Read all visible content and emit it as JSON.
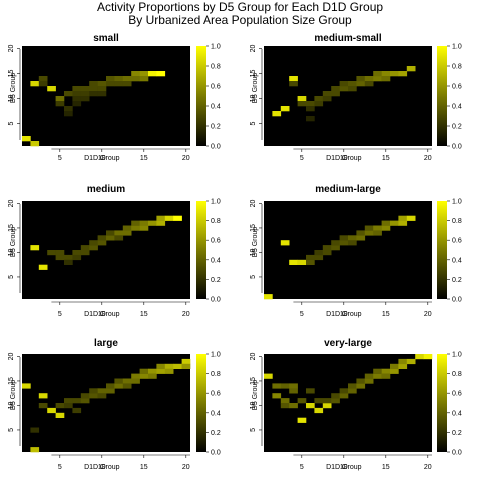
{
  "figure": {
    "title_line1": "Activity Proportions by D5 Group for Each D1D Group",
    "title_line2": "By Urbanized Area Population Size Group"
  },
  "colors": {
    "low": "#000000",
    "mid": "#7a7a00",
    "high": "#ffff00",
    "grid_bg": "#000000"
  },
  "chart_data": [
    {
      "type": "heatmap",
      "title": "small",
      "xlabel": "D1D Group",
      "ylabel": "D5 Group",
      "xlim": [
        1,
        20
      ],
      "ylim": [
        1,
        20
      ],
      "x_ticks": [
        5,
        10,
        15,
        20
      ],
      "y_ticks": [
        5,
        10,
        15,
        20
      ],
      "colorbar": {
        "range": [
          0,
          1
        ],
        "ticks": [
          "0.0",
          "0.2",
          "0.4",
          "0.6",
          "0.8",
          "1.0"
        ]
      },
      "cells": [
        [
          1,
          2,
          0.9
        ],
        [
          2,
          1,
          0.8
        ],
        [
          2,
          13,
          0.85
        ],
        [
          3,
          14,
          0.3
        ],
        [
          3,
          13,
          0.25
        ],
        [
          4,
          12,
          0.85
        ],
        [
          5,
          10,
          0.45
        ],
        [
          5,
          9,
          0.25
        ],
        [
          6,
          11,
          0.3
        ],
        [
          6,
          8,
          0.2
        ],
        [
          6,
          7,
          0.15
        ],
        [
          7,
          12,
          0.3
        ],
        [
          7,
          11,
          0.25
        ],
        [
          7,
          10,
          0.2
        ],
        [
          7,
          9,
          0.15
        ],
        [
          8,
          12,
          0.3
        ],
        [
          8,
          11,
          0.25
        ],
        [
          8,
          10,
          0.2
        ],
        [
          9,
          13,
          0.3
        ],
        [
          9,
          12,
          0.3
        ],
        [
          9,
          11,
          0.2
        ],
        [
          10,
          13,
          0.35
        ],
        [
          10,
          12,
          0.3
        ],
        [
          10,
          11,
          0.2
        ],
        [
          11,
          14,
          0.35
        ],
        [
          11,
          13,
          0.3
        ],
        [
          12,
          14,
          0.4
        ],
        [
          12,
          13,
          0.3
        ],
        [
          13,
          14,
          0.45
        ],
        [
          13,
          13,
          0.3
        ],
        [
          14,
          15,
          0.55
        ],
        [
          14,
          14,
          0.45
        ],
        [
          15,
          15,
          0.6
        ],
        [
          15,
          14,
          0.5
        ],
        [
          16,
          15,
          0.95
        ],
        [
          17,
          15,
          1.0
        ]
      ]
    },
    {
      "type": "heatmap",
      "title": "medium-small",
      "xlabel": "D1D Group",
      "ylabel": "D5 Group",
      "xlim": [
        1,
        20
      ],
      "ylim": [
        1,
        20
      ],
      "x_ticks": [
        5,
        10,
        15,
        20
      ],
      "y_ticks": [
        5,
        10,
        15,
        20
      ],
      "colorbar": {
        "range": [
          0,
          1
        ],
        "ticks": [
          "0.0",
          "0.2",
          "0.4",
          "0.6",
          "0.8",
          "1.0"
        ]
      },
      "cells": [
        [
          2,
          7,
          0.9
        ],
        [
          3,
          8,
          0.9
        ],
        [
          4,
          14,
          0.9
        ],
        [
          4,
          13,
          0.3
        ],
        [
          5,
          10,
          0.85
        ],
        [
          5,
          9,
          0.3
        ],
        [
          6,
          9,
          0.3
        ],
        [
          6,
          8,
          0.2
        ],
        [
          6,
          6,
          0.15
        ],
        [
          7,
          10,
          0.3
        ],
        [
          7,
          9,
          0.25
        ],
        [
          8,
          11,
          0.3
        ],
        [
          8,
          10,
          0.25
        ],
        [
          9,
          11,
          0.3
        ],
        [
          9,
          12,
          0.3
        ],
        [
          10,
          12,
          0.35
        ],
        [
          10,
          13,
          0.3
        ],
        [
          11,
          13,
          0.35
        ],
        [
          11,
          12,
          0.3
        ],
        [
          12,
          13,
          0.4
        ],
        [
          12,
          14,
          0.35
        ],
        [
          13,
          14,
          0.45
        ],
        [
          13,
          13,
          0.3
        ],
        [
          14,
          14,
          0.5
        ],
        [
          14,
          15,
          0.45
        ],
        [
          15,
          15,
          0.55
        ],
        [
          15,
          14,
          0.45
        ],
        [
          16,
          15,
          0.6
        ],
        [
          17,
          15,
          0.65
        ],
        [
          18,
          16,
          0.7
        ]
      ]
    },
    {
      "type": "heatmap",
      "title": "medium",
      "xlabel": "D1D Group",
      "ylabel": "D5 Group",
      "xlim": [
        1,
        20
      ],
      "ylim": [
        1,
        20
      ],
      "x_ticks": [
        5,
        10,
        15,
        20
      ],
      "y_ticks": [
        5,
        10,
        15,
        20
      ],
      "colorbar": {
        "range": [
          0,
          1
        ],
        "ticks": [
          "0.0",
          "0.2",
          "0.4",
          "0.6",
          "0.8",
          "1.0"
        ]
      },
      "cells": [
        [
          2,
          11,
          0.9
        ],
        [
          3,
          7,
          0.9
        ],
        [
          4,
          10,
          0.3
        ],
        [
          5,
          9,
          0.3
        ],
        [
          5,
          10,
          0.3
        ],
        [
          6,
          9,
          0.3
        ],
        [
          6,
          8,
          0.2
        ],
        [
          7,
          10,
          0.3
        ],
        [
          7,
          9,
          0.25
        ],
        [
          8,
          10,
          0.3
        ],
        [
          8,
          11,
          0.3
        ],
        [
          9,
          11,
          0.35
        ],
        [
          9,
          12,
          0.3
        ],
        [
          10,
          12,
          0.35
        ],
        [
          10,
          13,
          0.3
        ],
        [
          11,
          13,
          0.4
        ],
        [
          11,
          14,
          0.3
        ],
        [
          12,
          14,
          0.45
        ],
        [
          12,
          13,
          0.3
        ],
        [
          13,
          14,
          0.45
        ],
        [
          13,
          15,
          0.4
        ],
        [
          14,
          15,
          0.5
        ],
        [
          14,
          16,
          0.4
        ],
        [
          15,
          15,
          0.55
        ],
        [
          15,
          16,
          0.5
        ],
        [
          16,
          16,
          0.6
        ],
        [
          17,
          16,
          0.7
        ],
        [
          17,
          17,
          0.65
        ],
        [
          18,
          17,
          0.85
        ],
        [
          19,
          17,
          1.0
        ]
      ]
    },
    {
      "type": "heatmap",
      "title": "medium-large",
      "xlabel": "D1D Group",
      "ylabel": "D5 Group",
      "xlim": [
        1,
        20
      ],
      "ylim": [
        1,
        20
      ],
      "x_ticks": [
        5,
        10,
        15,
        20
      ],
      "y_ticks": [
        5,
        10,
        15,
        20
      ],
      "colorbar": {
        "range": [
          0,
          1
        ],
        "ticks": [
          "0.0",
          "0.2",
          "0.4",
          "0.6",
          "0.8",
          "1.0"
        ]
      },
      "cells": [
        [
          1,
          1,
          0.9
        ],
        [
          3,
          12,
          0.9
        ],
        [
          4,
          8,
          0.9
        ],
        [
          5,
          8,
          0.85
        ],
        [
          6,
          8,
          0.35
        ],
        [
          6,
          9,
          0.3
        ],
        [
          7,
          9,
          0.3
        ],
        [
          7,
          10,
          0.25
        ],
        [
          8,
          10,
          0.3
        ],
        [
          8,
          11,
          0.3
        ],
        [
          9,
          11,
          0.35
        ],
        [
          9,
          12,
          0.3
        ],
        [
          10,
          12,
          0.35
        ],
        [
          10,
          13,
          0.3
        ],
        [
          11,
          13,
          0.4
        ],
        [
          11,
          12,
          0.3
        ],
        [
          12,
          13,
          0.45
        ],
        [
          12,
          14,
          0.35
        ],
        [
          13,
          14,
          0.45
        ],
        [
          13,
          15,
          0.35
        ],
        [
          14,
          15,
          0.5
        ],
        [
          14,
          14,
          0.4
        ],
        [
          15,
          15,
          0.55
        ],
        [
          15,
          16,
          0.45
        ],
        [
          16,
          16,
          0.6
        ],
        [
          17,
          16,
          0.7
        ],
        [
          17,
          17,
          0.65
        ],
        [
          18,
          17,
          0.85
        ]
      ]
    },
    {
      "type": "heatmap",
      "title": "large",
      "xlabel": "D1D Group",
      "ylabel": "D5 Group",
      "xlim": [
        1,
        20
      ],
      "ylim": [
        1,
        20
      ],
      "x_ticks": [
        5,
        10,
        15,
        20
      ],
      "y_ticks": [
        5,
        10,
        15,
        20
      ],
      "colorbar": {
        "range": [
          0,
          1
        ],
        "ticks": [
          "0.0",
          "0.2",
          "0.4",
          "0.6",
          "0.8",
          "1.0"
        ]
      },
      "cells": [
        [
          1,
          14,
          0.85
        ],
        [
          2,
          5,
          0.2
        ],
        [
          2,
          1,
          0.75
        ],
        [
          3,
          12,
          0.85
        ],
        [
          3,
          10,
          0.3
        ],
        [
          4,
          9,
          0.85
        ],
        [
          5,
          8,
          0.85
        ],
        [
          5,
          10,
          0.3
        ],
        [
          6,
          11,
          0.3
        ],
        [
          6,
          10,
          0.25
        ],
        [
          7,
          11,
          0.3
        ],
        [
          7,
          9,
          0.25
        ],
        [
          8,
          11,
          0.35
        ],
        [
          8,
          12,
          0.3
        ],
        [
          9,
          12,
          0.35
        ],
        [
          9,
          13,
          0.3
        ],
        [
          10,
          13,
          0.4
        ],
        [
          10,
          12,
          0.3
        ],
        [
          11,
          13,
          0.4
        ],
        [
          11,
          14,
          0.35
        ],
        [
          12,
          14,
          0.45
        ],
        [
          12,
          15,
          0.35
        ],
        [
          13,
          15,
          0.45
        ],
        [
          13,
          14,
          0.35
        ],
        [
          14,
          16,
          0.5
        ],
        [
          14,
          15,
          0.45
        ],
        [
          15,
          16,
          0.55
        ],
        [
          15,
          17,
          0.45
        ],
        [
          16,
          17,
          0.6
        ],
        [
          16,
          16,
          0.5
        ],
        [
          17,
          17,
          0.65
        ],
        [
          17,
          18,
          0.55
        ],
        [
          18,
          18,
          0.7
        ],
        [
          18,
          17,
          0.6
        ],
        [
          19,
          18,
          0.75
        ],
        [
          20,
          19,
          0.8
        ],
        [
          20,
          18,
          0.6
        ]
      ]
    },
    {
      "type": "heatmap",
      "title": "very-large",
      "xlabel": "D1D Group",
      "ylabel": "D5 Group",
      "xlim": [
        1,
        20
      ],
      "ylim": [
        1,
        20
      ],
      "x_ticks": [
        5,
        10,
        15,
        20
      ],
      "y_ticks": [
        5,
        10,
        15,
        20
      ],
      "colorbar": {
        "range": [
          0,
          1
        ],
        "ticks": [
          "0.0",
          "0.2",
          "0.4",
          "0.6",
          "0.8",
          "1.0"
        ]
      },
      "cells": [
        [
          1,
          16,
          0.85
        ],
        [
          2,
          14,
          0.45
        ],
        [
          2,
          12,
          0.55
        ],
        [
          3,
          14,
          0.4
        ],
        [
          3,
          11,
          0.45
        ],
        [
          3,
          10,
          0.35
        ],
        [
          4,
          14,
          0.45
        ],
        [
          4,
          13,
          0.4
        ],
        [
          4,
          10,
          0.45
        ],
        [
          5,
          11,
          0.35
        ],
        [
          5,
          7,
          0.9
        ],
        [
          6,
          10,
          0.85
        ],
        [
          6,
          13,
          0.3
        ],
        [
          7,
          9,
          0.85
        ],
        [
          7,
          11,
          0.3
        ],
        [
          8,
          10,
          0.85
        ],
        [
          8,
          11,
          0.3
        ],
        [
          9,
          11,
          0.35
        ],
        [
          9,
          12,
          0.3
        ],
        [
          10,
          12,
          0.4
        ],
        [
          10,
          13,
          0.3
        ],
        [
          11,
          13,
          0.4
        ],
        [
          11,
          14,
          0.35
        ],
        [
          12,
          14,
          0.45
        ],
        [
          12,
          15,
          0.35
        ],
        [
          13,
          15,
          0.45
        ],
        [
          13,
          16,
          0.4
        ],
        [
          14,
          16,
          0.5
        ],
        [
          14,
          17,
          0.4
        ],
        [
          15,
          17,
          0.55
        ],
        [
          15,
          16,
          0.45
        ],
        [
          16,
          17,
          0.6
        ],
        [
          16,
          18,
          0.5
        ],
        [
          17,
          18,
          0.65
        ],
        [
          17,
          19,
          0.55
        ],
        [
          18,
          19,
          0.7
        ],
        [
          19,
          20,
          0.85
        ],
        [
          20,
          20,
          0.95
        ]
      ]
    }
  ]
}
